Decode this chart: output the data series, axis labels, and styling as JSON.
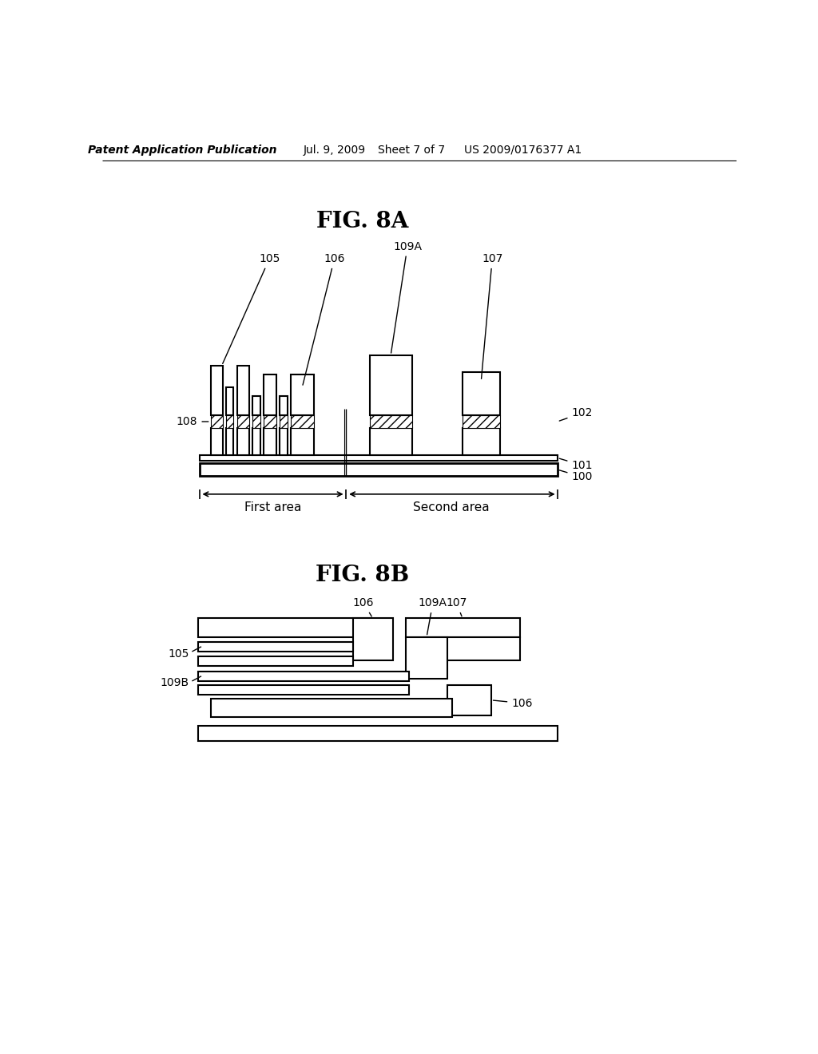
{
  "background_color": "#ffffff",
  "header_text": "Patent Application Publication",
  "header_date": "Jul. 9, 2009",
  "header_sheet": "Sheet 7 of 7",
  "header_patent": "US 2009/0176377 A1",
  "fig8a_title": "FIG. 8A",
  "fig8b_title": "FIG. 8B"
}
